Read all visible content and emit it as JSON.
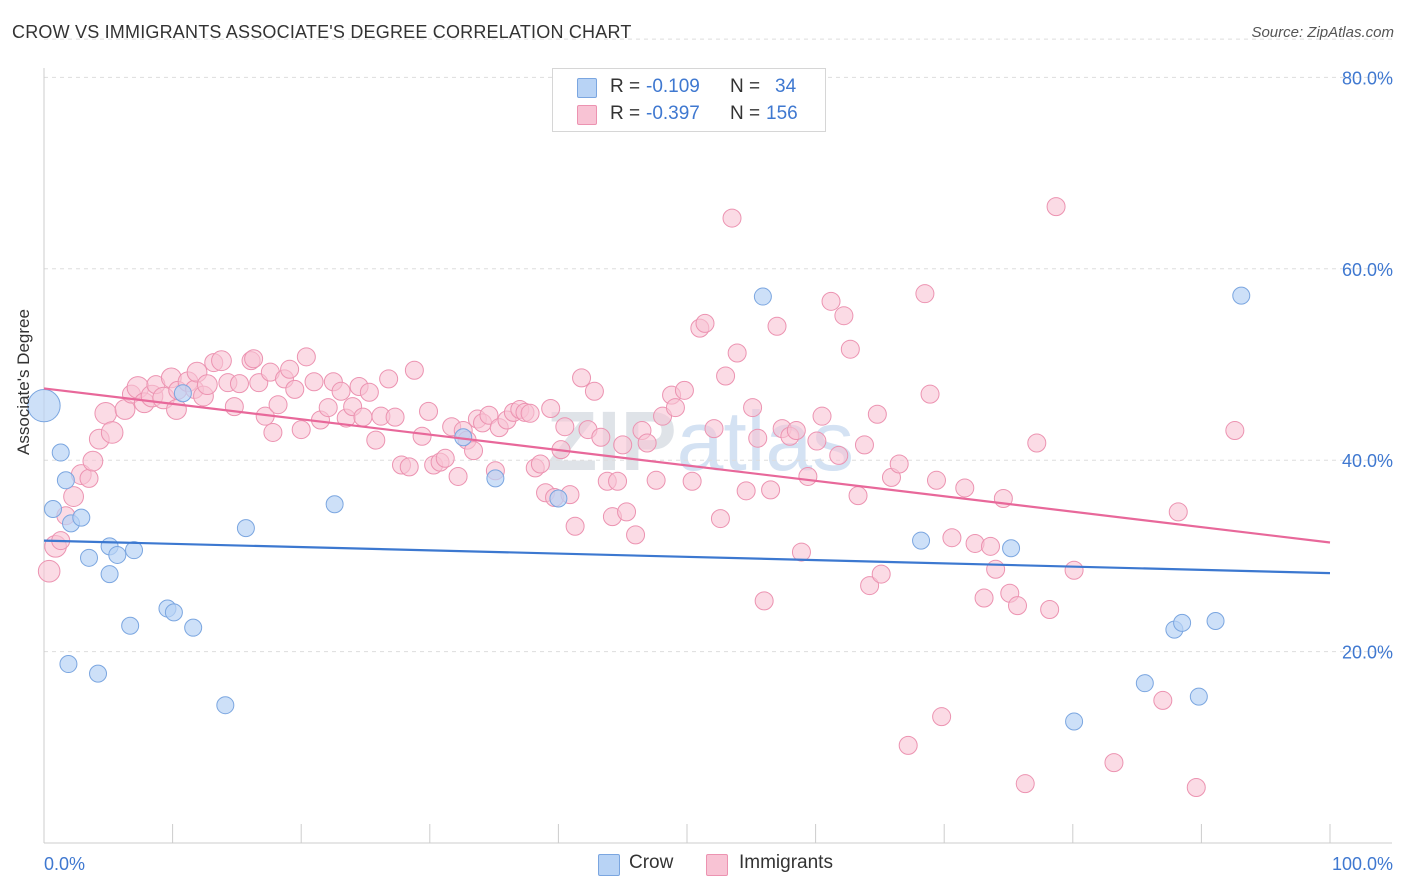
{
  "header": {
    "title": "CROW VS IMMIGRANTS ASSOCIATE'S DEGREE CORRELATION CHART",
    "source": "Source: ZipAtlas.com"
  },
  "legend": {
    "crow": {
      "r_label": "R =",
      "r_value": "-0.109",
      "n_label": "N =",
      "n_value": "34"
    },
    "immigrants": {
      "r_label": "R =",
      "r_value": "-0.397",
      "n_label": "N =",
      "n_value": "156"
    }
  },
  "bottom_legend": {
    "crow": "Crow",
    "immigrants": "Immigrants"
  },
  "colors": {
    "crow_fill": "#b8d3f5",
    "crow_stroke": "#7ba6e0",
    "crow_line": "#3c78d0",
    "imm_fill": "#f8c3d4",
    "imm_stroke": "#ec93b1",
    "imm_line": "#e8689a",
    "tick_label": "#3f78d0",
    "grid": "#dddddd"
  },
  "chart_data": {
    "type": "scatter",
    "title": "CROW VS IMMIGRANTS ASSOCIATE'S DEGREE CORRELATION CHART",
    "xlabel": "",
    "ylabel": "Associate's Degree",
    "xlim": [
      0,
      100
    ],
    "ylim": [
      0,
      84
    ],
    "x_tick_labels": [
      "0.0%",
      "100.0%"
    ],
    "y_ticks": [
      20,
      40,
      60,
      80
    ],
    "y_tick_labels": [
      "20.0%",
      "40.0%",
      "60.0%",
      "80.0%"
    ],
    "grid": "horizontal dashed",
    "legend_position": "top-center",
    "watermark": "ZIPatlas",
    "series": [
      {
        "name": "Crow",
        "r": -0.109,
        "n": 34,
        "trend": {
          "x": [
            0,
            100
          ],
          "y": [
            31.6,
            28.2
          ]
        },
        "points": [
          [
            0.0,
            45.7,
            1.9
          ],
          [
            0.7,
            34.9,
            1
          ],
          [
            1.3,
            40.8,
            1
          ],
          [
            1.7,
            37.9,
            1
          ],
          [
            2.1,
            33.4,
            1
          ],
          [
            2.9,
            34.0,
            1
          ],
          [
            3.5,
            29.8,
            1
          ],
          [
            5.1,
            31.0,
            1
          ],
          [
            5.7,
            30.1,
            1
          ],
          [
            7.0,
            30.6,
            1
          ],
          [
            1.9,
            18.7,
            1
          ],
          [
            4.2,
            17.7,
            1
          ],
          [
            5.1,
            28.1,
            1
          ],
          [
            6.7,
            22.7,
            1
          ],
          [
            9.6,
            24.5,
            1
          ],
          [
            10.1,
            24.1,
            1
          ],
          [
            11.6,
            22.5,
            1
          ],
          [
            14.1,
            14.4,
            1
          ],
          [
            15.7,
            32.9,
            1
          ],
          [
            22.6,
            35.4,
            1
          ],
          [
            10.8,
            47.0,
            1
          ],
          [
            32.6,
            42.4,
            1
          ],
          [
            35.1,
            38.1,
            1
          ],
          [
            40.0,
            36.0,
            1
          ],
          [
            55.9,
            57.1,
            1
          ],
          [
            68.2,
            31.6,
            1
          ],
          [
            75.2,
            30.8,
            1
          ],
          [
            80.1,
            12.7,
            1
          ],
          [
            85.6,
            16.7,
            1
          ],
          [
            87.9,
            22.3,
            1
          ],
          [
            88.5,
            23.0,
            1
          ],
          [
            89.8,
            15.3,
            1
          ],
          [
            91.1,
            23.2,
            1
          ],
          [
            93.1,
            57.2,
            1
          ]
        ]
      },
      {
        "name": "Immigrants",
        "r": -0.397,
        "n": 156,
        "trend": {
          "x": [
            0,
            100
          ],
          "y": [
            47.5,
            31.4
          ]
        },
        "points": [
          [
            0.4,
            28.4,
            1.2
          ],
          [
            0.9,
            31.0,
            1.2
          ],
          [
            1.3,
            31.6,
            1
          ],
          [
            1.7,
            34.2,
            1
          ],
          [
            2.3,
            36.2,
            1.1
          ],
          [
            2.9,
            38.5,
            1.1
          ],
          [
            3.5,
            38.1,
            1
          ],
          [
            3.8,
            39.9,
            1.1
          ],
          [
            4.3,
            42.2,
            1.1
          ],
          [
            4.8,
            44.9,
            1.2
          ],
          [
            5.3,
            42.9,
            1.2
          ],
          [
            6.3,
            45.3,
            1.1
          ],
          [
            6.8,
            46.9,
            1
          ],
          [
            7.3,
            47.6,
            1.2
          ],
          [
            7.8,
            46.0,
            1.1
          ],
          [
            8.4,
            46.7,
            1.2
          ],
          [
            8.7,
            47.9,
            1
          ],
          [
            9.3,
            46.5,
            1.2
          ],
          [
            9.9,
            48.6,
            1.1
          ],
          [
            10.4,
            47.3,
            1
          ],
          [
            10.3,
            45.3,
            1.1
          ],
          [
            11.2,
            48.2,
            1.1
          ],
          [
            11.7,
            47.4,
            1
          ],
          [
            11.9,
            49.2,
            1.1
          ],
          [
            12.4,
            46.7,
            1.1
          ],
          [
            12.7,
            47.9,
            1.1
          ],
          [
            13.2,
            50.2,
            1
          ],
          [
            13.8,
            50.4,
            1.1
          ],
          [
            14.3,
            48.1,
            1
          ],
          [
            14.8,
            45.6,
            1
          ],
          [
            15.2,
            48.0,
            1
          ],
          [
            16.1,
            50.4,
            1
          ],
          [
            16.3,
            50.6,
            1
          ],
          [
            16.7,
            48.1,
            1
          ],
          [
            17.2,
            44.6,
            1
          ],
          [
            17.6,
            49.2,
            1
          ],
          [
            17.8,
            42.9,
            1
          ],
          [
            18.2,
            45.8,
            1
          ],
          [
            18.7,
            48.5,
            1
          ],
          [
            19.1,
            49.5,
            1
          ],
          [
            19.5,
            47.4,
            1
          ],
          [
            20.0,
            43.2,
            1
          ],
          [
            20.4,
            50.8,
            1
          ],
          [
            21.0,
            48.2,
            1
          ],
          [
            21.5,
            44.2,
            1
          ],
          [
            22.1,
            45.5,
            1
          ],
          [
            22.5,
            48.2,
            1
          ],
          [
            23.1,
            47.2,
            1
          ],
          [
            23.5,
            44.4,
            1
          ],
          [
            24.0,
            45.6,
            1
          ],
          [
            24.5,
            47.7,
            1
          ],
          [
            24.8,
            44.5,
            1
          ],
          [
            25.3,
            47.1,
            1
          ],
          [
            25.8,
            42.1,
            1
          ],
          [
            26.2,
            44.6,
            1
          ],
          [
            26.8,
            48.5,
            1
          ],
          [
            27.3,
            44.5,
            1
          ],
          [
            27.8,
            39.5,
            1
          ],
          [
            28.4,
            39.3,
            1
          ],
          [
            28.8,
            49.4,
            1
          ],
          [
            29.4,
            42.5,
            1
          ],
          [
            29.9,
            45.1,
            1
          ],
          [
            30.3,
            39.5,
            1
          ],
          [
            30.8,
            39.8,
            1
          ],
          [
            31.2,
            40.2,
            1
          ],
          [
            31.7,
            43.5,
            1
          ],
          [
            32.2,
            38.3,
            1
          ],
          [
            32.6,
            43.1,
            1
          ],
          [
            32.9,
            42.1,
            1
          ],
          [
            33.4,
            41.0,
            1
          ],
          [
            33.7,
            44.3,
            1
          ],
          [
            34.1,
            43.9,
            1
          ],
          [
            34.6,
            44.7,
            1
          ],
          [
            35.1,
            38.9,
            1
          ],
          [
            35.4,
            43.4,
            1
          ],
          [
            36.0,
            44.2,
            1
          ],
          [
            36.5,
            45.0,
            1
          ],
          [
            37.0,
            45.3,
            1
          ],
          [
            37.4,
            45.0,
            1
          ],
          [
            37.8,
            44.9,
            1
          ],
          [
            38.2,
            39.2,
            1
          ],
          [
            38.6,
            39.6,
            1
          ],
          [
            39.0,
            36.6,
            1
          ],
          [
            39.4,
            45.4,
            1
          ],
          [
            39.7,
            36.1,
            1
          ],
          [
            40.2,
            41.1,
            1
          ],
          [
            40.5,
            43.5,
            1
          ],
          [
            40.9,
            36.4,
            1
          ],
          [
            41.3,
            33.1,
            1
          ],
          [
            41.8,
            48.6,
            1
          ],
          [
            42.3,
            43.2,
            1
          ],
          [
            42.8,
            47.2,
            1
          ],
          [
            43.3,
            42.4,
            1
          ],
          [
            43.8,
            37.8,
            1
          ],
          [
            44.2,
            34.1,
            1
          ],
          [
            44.6,
            37.8,
            1
          ],
          [
            45.0,
            41.6,
            1
          ],
          [
            45.3,
            34.6,
            1
          ],
          [
            46.0,
            32.2,
            1
          ],
          [
            46.5,
            43.1,
            1
          ],
          [
            46.9,
            41.8,
            1
          ],
          [
            47.6,
            37.9,
            1
          ],
          [
            48.1,
            44.6,
            1
          ],
          [
            48.8,
            46.8,
            1
          ],
          [
            49.1,
            45.5,
            1
          ],
          [
            49.8,
            47.3,
            1
          ],
          [
            50.4,
            37.8,
            1
          ],
          [
            51.0,
            53.8,
            1
          ],
          [
            51.4,
            54.3,
            1
          ],
          [
            52.1,
            43.3,
            1
          ],
          [
            52.6,
            33.9,
            1
          ],
          [
            53.0,
            48.8,
            1
          ],
          [
            53.5,
            65.3,
            1
          ],
          [
            53.9,
            51.2,
            1
          ],
          [
            54.6,
            36.8,
            1
          ],
          [
            55.1,
            45.5,
            1
          ],
          [
            55.5,
            42.3,
            1
          ],
          [
            56.0,
            25.3,
            1
          ],
          [
            56.5,
            36.9,
            1
          ],
          [
            57.0,
            54.0,
            1
          ],
          [
            57.4,
            43.3,
            1
          ],
          [
            58.0,
            42.5,
            1
          ],
          [
            58.5,
            43.1,
            1
          ],
          [
            58.9,
            30.4,
            1
          ],
          [
            59.4,
            38.3,
            1
          ],
          [
            60.1,
            42.0,
            1
          ],
          [
            60.5,
            44.6,
            1
          ],
          [
            61.2,
            56.6,
            1
          ],
          [
            61.8,
            40.5,
            1
          ],
          [
            62.2,
            55.1,
            1
          ],
          [
            62.7,
            51.6,
            1
          ],
          [
            63.3,
            36.3,
            1
          ],
          [
            63.8,
            41.6,
            1
          ],
          [
            64.2,
            26.9,
            1
          ],
          [
            64.8,
            44.8,
            1
          ],
          [
            65.1,
            28.1,
            1
          ],
          [
            65.9,
            38.2,
            1
          ],
          [
            66.5,
            39.6,
            1
          ],
          [
            67.2,
            10.2,
            1
          ],
          [
            68.5,
            57.4,
            1
          ],
          [
            68.9,
            46.9,
            1
          ],
          [
            69.4,
            37.9,
            1
          ],
          [
            69.8,
            13.2,
            1
          ],
          [
            70.6,
            31.9,
            1
          ],
          [
            71.6,
            37.1,
            1
          ],
          [
            72.4,
            31.3,
            1
          ],
          [
            73.1,
            25.6,
            1
          ],
          [
            73.6,
            31.0,
            1
          ],
          [
            74.0,
            28.6,
            1
          ],
          [
            74.6,
            36.0,
            1
          ],
          [
            75.1,
            26.1,
            1
          ],
          [
            75.7,
            24.8,
            1
          ],
          [
            76.3,
            6.2,
            1
          ],
          [
            77.2,
            41.8,
            1
          ],
          [
            78.2,
            24.4,
            1
          ],
          [
            78.7,
            66.5,
            1
          ],
          [
            80.1,
            28.5,
            1
          ],
          [
            83.2,
            8.4,
            1
          ],
          [
            87.0,
            14.9,
            1
          ],
          [
            88.2,
            34.6,
            1
          ],
          [
            89.6,
            5.8,
            1
          ],
          [
            92.6,
            43.1,
            1
          ]
        ]
      }
    ]
  }
}
